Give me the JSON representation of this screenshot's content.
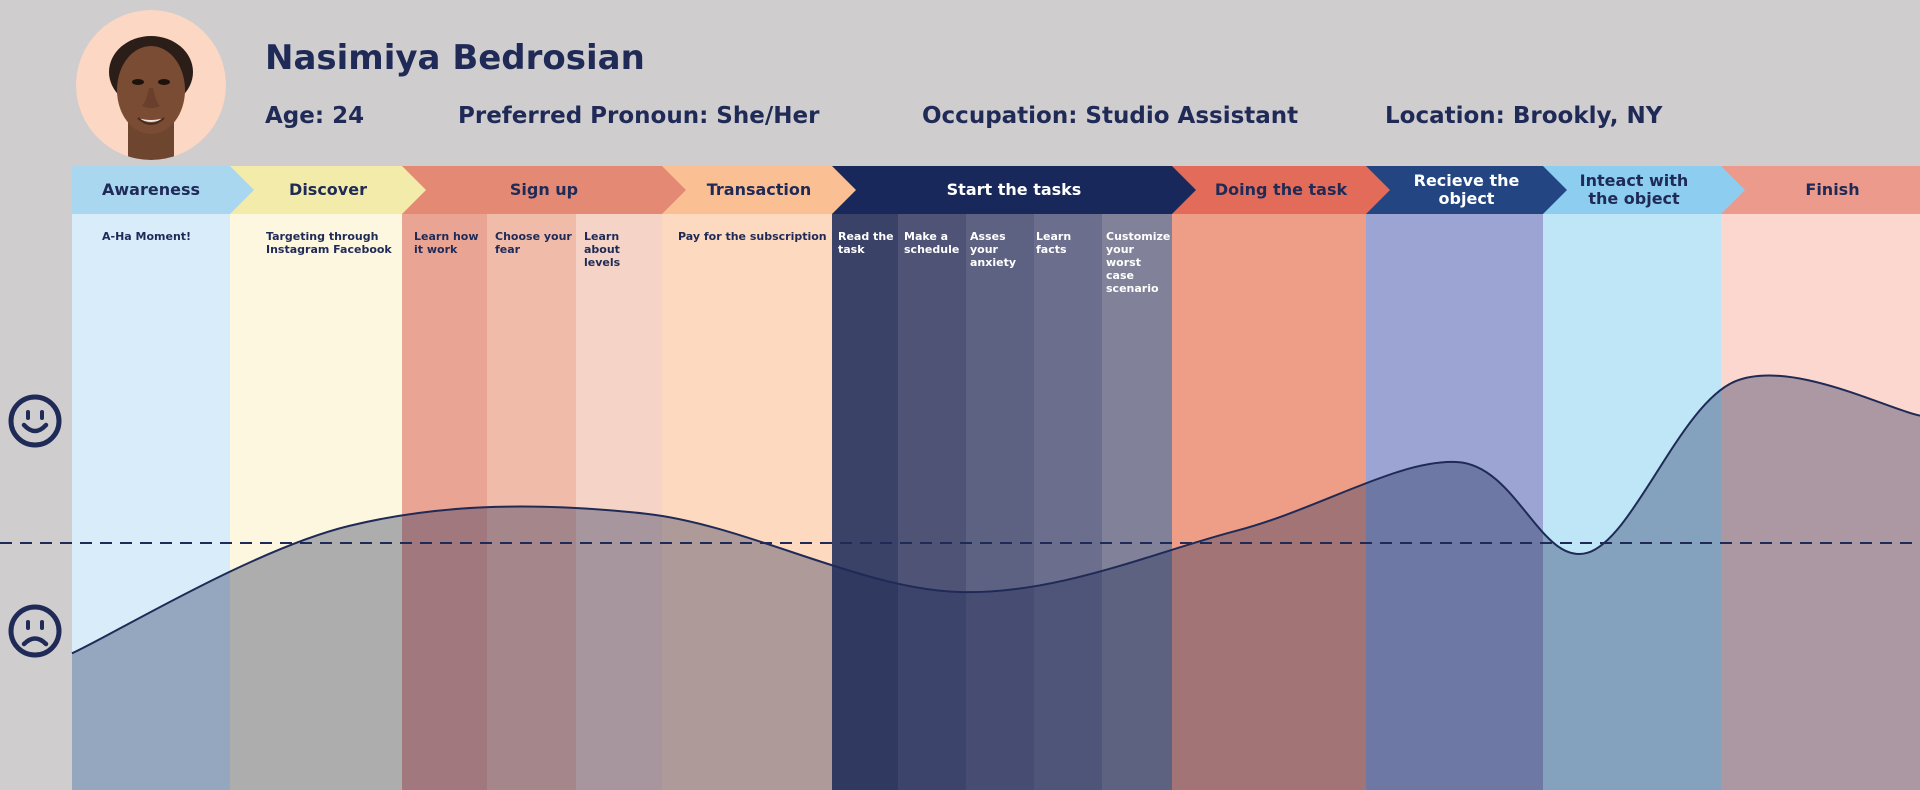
{
  "persona": {
    "name": "Nasimiya Bedrosian",
    "age": "Age: 24",
    "pronoun": "Preferred Pronoun: She/Her",
    "occupation": "Occupation: Studio Assistant",
    "location": "Location: Brookly, NY"
  },
  "stages": [
    {
      "label": "Awareness",
      "bar_color": "#a9d7f0",
      "col_color": "#d8ecfa",
      "text_color": "#1f2a57"
    },
    {
      "label": "Discover",
      "bar_color": "#f3eba9",
      "col_color": "#fdf7e0",
      "text_color": "#1f2a57"
    },
    {
      "label": "Sign up",
      "bar_color": "#e48a74",
      "col_color": "#f0c0ad",
      "text_color": "#1f2a57"
    },
    {
      "label": "Transaction",
      "bar_color": "#fbbf94",
      "col_color": "#fdddc4",
      "text_color": "#1f2a57"
    },
    {
      "label": "Start the tasks",
      "bar_color": "#18285a",
      "col_color": "#4d5275",
      "text_color": "#ffffff"
    },
    {
      "label": "Doing the task",
      "bar_color": "#e26c59",
      "col_color": "#ee9e87",
      "text_color": "#1f2a57"
    },
    {
      "label": "Recieve the object",
      "bar_color": "#234682",
      "col_color": "#9ba4d2",
      "text_color": "#ffffff"
    },
    {
      "label": "Inteact with the object",
      "bar_color": "#8ccdf0",
      "col_color": "#bee6f7",
      "text_color": "#1f2a57"
    },
    {
      "label": "Finish",
      "bar_color": "#ec9a8c",
      "col_color": "#fcd7cf",
      "text_color": "#1f2a57"
    }
  ],
  "substeps": [
    {
      "text": "A-Ha Moment!",
      "color": "#d8ecfa",
      "text_color": "#1f2a57"
    },
    {
      "text": "Targeting through Instagram Facebook",
      "color": "#fdf7e0",
      "text_color": "#1f2a57"
    },
    {
      "text": "Learn how it work",
      "color": "#eaa494",
      "text_color": "#1f2a57"
    },
    {
      "text": "Choose your fear",
      "color": "#f0bba9",
      "text_color": "#1f2a57"
    },
    {
      "text": "Learn about levels",
      "color": "#f5d4c7",
      "text_color": "#1f2a57"
    },
    {
      "text": "Pay for the subscription",
      "color": "#fdd9bf",
      "text_color": "#1f2a57"
    },
    {
      "text": "Read the task",
      "color": "#3a4267",
      "text_color": "#ffffff"
    },
    {
      "text": "Make a schedule",
      "color": "#4f5477",
      "text_color": "#ffffff"
    },
    {
      "text": "Asses your anxiety",
      "color": "#5e6282",
      "text_color": "#ffffff"
    },
    {
      "text": "Learn facts",
      "color": "#6b6e8c",
      "text_color": "#ffffff"
    },
    {
      "text": "Customize your worst case scenario",
      "color": "#818299",
      "text_color": "#ffffff"
    },
    {
      "text": "",
      "color": "#ee9e87",
      "text_color": "#1f2a57"
    },
    {
      "text": "",
      "color": "#9ba4d2",
      "text_color": "#1f2a57"
    },
    {
      "text": "",
      "color": "#bee6f7",
      "text_color": "#1f2a57"
    },
    {
      "text": "",
      "color": "#fcd7cf",
      "text_color": "#1f2a57"
    }
  ],
  "chart_data": {
    "type": "area",
    "x": [
      0,
      15,
      31,
      48,
      63,
      75,
      82,
      90,
      100
    ],
    "values": [
      -0.45,
      0.07,
      0.12,
      -0.2,
      0.05,
      0.33,
      -0.04,
      0.66,
      0.52
    ],
    "ylim": [
      -1,
      1
    ],
    "neutral_line": 0,
    "fill_color": "#1f2a57",
    "fill_opacity": 0.36,
    "line_color": "#1f2a57"
  },
  "icons": {
    "happy": "smiley-face-icon",
    "sad": "sad-face-icon"
  }
}
